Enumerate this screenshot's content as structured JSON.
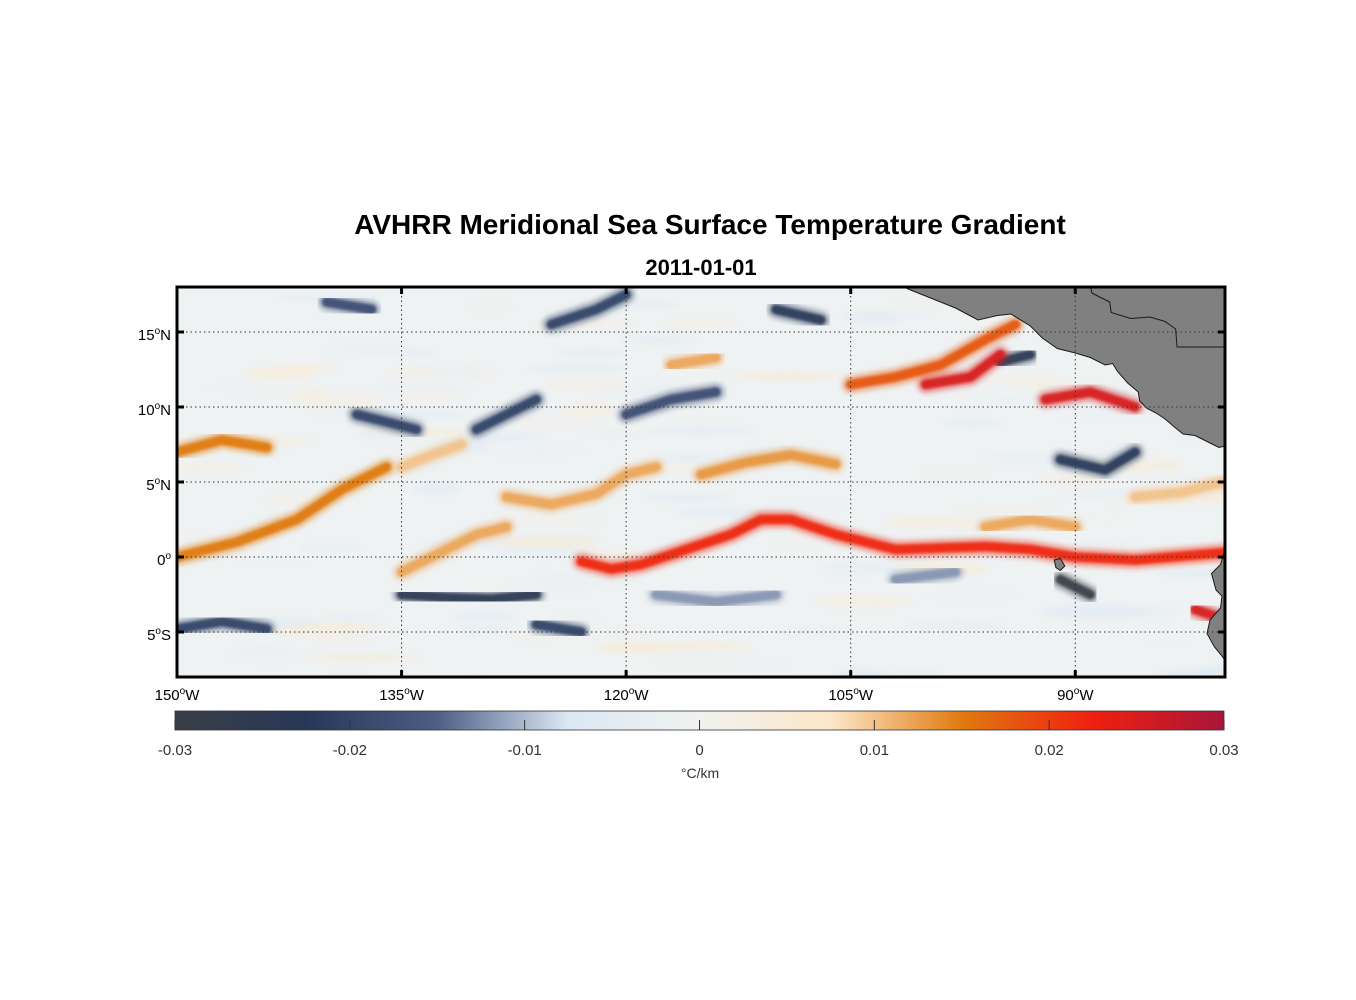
{
  "figure": {
    "title": "AVHRR Meridional Sea Surface Temperature Gradient",
    "subtitle": "2011-01-01"
  },
  "map": {
    "lon_range": [
      -150,
      -80
    ],
    "lat_range": [
      -8,
      18
    ],
    "lat_ticks": [
      {
        "value": 15,
        "label": "15",
        "hemi": "N"
      },
      {
        "value": 10,
        "label": "10",
        "hemi": "N"
      },
      {
        "value": 5,
        "label": "5",
        "hemi": "N"
      },
      {
        "value": 0,
        "label": "0",
        "hemi": ""
      },
      {
        "value": -5,
        "label": "5",
        "hemi": "S"
      }
    ],
    "lon_ticks": [
      {
        "value": -150,
        "label": "150",
        "hemi": "W"
      },
      {
        "value": -135,
        "label": "135",
        "hemi": "W"
      },
      {
        "value": -120,
        "label": "120",
        "hemi": "W"
      },
      {
        "value": -105,
        "label": "105",
        "hemi": "W"
      },
      {
        "value": -90,
        "label": "90",
        "hemi": "W"
      }
    ],
    "grid": "dotted",
    "land_color": "#808080",
    "degree_symbol": "o"
  },
  "colorbar": {
    "unit": "°C/km",
    "range": [
      -0.03,
      0.03
    ],
    "ticks": [
      {
        "value": -0.03,
        "label": "-0.03"
      },
      {
        "value": -0.02,
        "label": "-0.02"
      },
      {
        "value": -0.01,
        "label": "-0.01"
      },
      {
        "value": 0,
        "label": "0"
      },
      {
        "value": 0.01,
        "label": "0.01"
      },
      {
        "value": 0.02,
        "label": "0.02"
      },
      {
        "value": 0.03,
        "label": "0.03"
      }
    ],
    "colors": [
      "#3a3f47",
      "#263757",
      "#4d5e86",
      "#dbe8f4",
      "#f0f2f0",
      "#fde7c8",
      "#e07a10",
      "#f02010",
      "#a8153a"
    ]
  },
  "bands": {
    "positive": [
      {
        "points": [
          [
            -150,
            0
          ],
          [
            -146,
            1
          ],
          [
            -142,
            2.5
          ],
          [
            -139,
            4.5
          ],
          [
            -137,
            5.5
          ],
          [
            -136,
            6
          ]
        ],
        "value": 0.015
      },
      {
        "points": [
          [
            -150,
            7
          ],
          [
            -147,
            7.8
          ],
          [
            -144,
            7.3
          ]
        ],
        "value": 0.015
      },
      {
        "points": [
          [
            -135,
            -1
          ],
          [
            -133,
            0
          ],
          [
            -130,
            1.5
          ],
          [
            -128,
            2
          ]
        ],
        "value": 0.012
      },
      {
        "points": [
          [
            -135,
            6
          ],
          [
            -133,
            6.8
          ],
          [
            -131,
            7.5
          ]
        ],
        "value": 0.01
      },
      {
        "points": [
          [
            -128,
            4
          ],
          [
            -125,
            3.5
          ],
          [
            -122,
            4.2
          ],
          [
            -120,
            5.5
          ],
          [
            -118,
            6
          ]
        ],
        "value": 0.012
      },
      {
        "points": [
          [
            -123,
            -0.3
          ],
          [
            -121,
            -0.8
          ],
          [
            -119,
            -0.5
          ],
          [
            -116,
            0.5
          ],
          [
            -113,
            1.5
          ],
          [
            -111,
            2.5
          ],
          [
            -109,
            2.5
          ],
          [
            -106,
            1.5
          ],
          [
            -104,
            1
          ],
          [
            -102,
            0.5
          ],
          [
            -99,
            0.6
          ],
          [
            -96,
            0.7
          ],
          [
            -93,
            0.5
          ],
          [
            -90,
            0
          ],
          [
            -86,
            -0.2
          ],
          [
            -80,
            0.3
          ]
        ],
        "value": 0.022
      },
      {
        "points": [
          [
            -115,
            5.5
          ],
          [
            -112,
            6.3
          ],
          [
            -109,
            6.8
          ],
          [
            -106,
            6.2
          ]
        ],
        "value": 0.013
      },
      {
        "points": [
          [
            -117,
            12.8
          ],
          [
            -114,
            13.3
          ]
        ],
        "value": 0.012
      },
      {
        "points": [
          [
            -105,
            11.5
          ],
          [
            -102,
            12
          ],
          [
            -99,
            12.8
          ],
          [
            -96,
            14.5
          ],
          [
            -94,
            15.5
          ]
        ],
        "value": 0.018
      },
      {
        "points": [
          [
            -100,
            11.5
          ],
          [
            -97,
            12
          ],
          [
            -95,
            13.5
          ]
        ],
        "value": 0.025
      },
      {
        "points": [
          [
            -92,
            10.5
          ],
          [
            -89,
            11
          ],
          [
            -86,
            10
          ]
        ],
        "value": 0.025
      },
      {
        "points": [
          [
            -96,
            2
          ],
          [
            -93,
            2.5
          ],
          [
            -90,
            2
          ]
        ],
        "value": 0.012
      },
      {
        "points": [
          [
            -86,
            4
          ],
          [
            -83,
            4.3
          ],
          [
            -80,
            5
          ]
        ],
        "value": 0.01
      },
      {
        "points": [
          [
            -82,
            -3.5
          ],
          [
            -80.5,
            -4
          ]
        ],
        "value": 0.025
      }
    ],
    "negative": [
      {
        "points": [
          [
            -135,
            -2.5
          ],
          [
            -132,
            -2.7
          ],
          [
            -129,
            -2.8
          ],
          [
            -126,
            -2.5
          ]
        ],
        "value": -0.025
      },
      {
        "points": [
          [
            -150,
            -4.8
          ],
          [
            -147,
            -4.3
          ],
          [
            -144,
            -4.8
          ]
        ],
        "value": -0.02
      },
      {
        "points": [
          [
            -126,
            -4.5
          ],
          [
            -123,
            -5
          ]
        ],
        "value": -0.02
      },
      {
        "points": [
          [
            -138,
            9.5
          ],
          [
            -136,
            9
          ],
          [
            -134,
            8.5
          ]
        ],
        "value": -0.02
      },
      {
        "points": [
          [
            -130,
            8.5
          ],
          [
            -128,
            9.5
          ],
          [
            -126,
            10.5
          ]
        ],
        "value": -0.02
      },
      {
        "points": [
          [
            -120,
            9.5
          ],
          [
            -117,
            10.5
          ],
          [
            -114,
            11
          ]
        ],
        "value": -0.018
      },
      {
        "points": [
          [
            -125,
            15.5
          ],
          [
            -122,
            16.5
          ],
          [
            -120,
            17.5
          ]
        ],
        "value": -0.02
      },
      {
        "points": [
          [
            -140,
            17
          ],
          [
            -137,
            16.5
          ]
        ],
        "value": -0.018
      },
      {
        "points": [
          [
            -110,
            16.5
          ],
          [
            -107,
            15.8
          ]
        ],
        "value": -0.022
      },
      {
        "points": [
          [
            -95,
            13
          ],
          [
            -93,
            13.5
          ]
        ],
        "value": -0.025
      },
      {
        "points": [
          [
            -91,
            6.5
          ],
          [
            -88,
            5.8
          ],
          [
            -86,
            7
          ]
        ],
        "value": -0.022
      },
      {
        "points": [
          [
            -91,
            -1.5
          ],
          [
            -89,
            -2.5
          ]
        ],
        "value": -0.03
      },
      {
        "points": [
          [
            -118,
            -2.5
          ],
          [
            -114,
            -3
          ],
          [
            -110,
            -2.5
          ]
        ],
        "value": -0.012
      },
      {
        "points": [
          [
            -102,
            -1.5
          ],
          [
            -98,
            -1
          ]
        ],
        "value": -0.012
      }
    ]
  }
}
